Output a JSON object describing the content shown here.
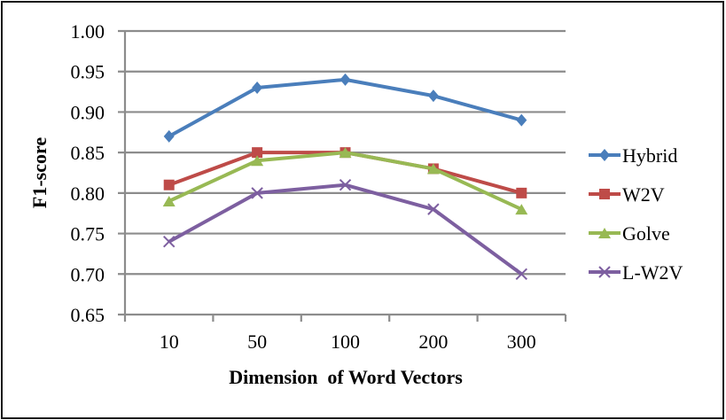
{
  "chart_data": {
    "type": "line",
    "title": "",
    "xlabel": "Dimension  of Word Vectors",
    "ylabel": "F1-score",
    "categories": [
      "10",
      "50",
      "100",
      "200",
      "300"
    ],
    "ylim": [
      0.65,
      1.0
    ],
    "yticks": [
      "1.00",
      "0.95",
      "0.90",
      "0.85",
      "0.80",
      "0.75",
      "0.70",
      "0.65"
    ],
    "grid": true,
    "legend_position": "right",
    "series": [
      {
        "name": "Hybrid",
        "color": "#4a7ebb",
        "marker": "diamond",
        "values": [
          0.87,
          0.93,
          0.94,
          0.92,
          0.89
        ]
      },
      {
        "name": "W2V",
        "color": "#be4b48",
        "marker": "square",
        "values": [
          0.81,
          0.85,
          0.85,
          0.83,
          0.8
        ]
      },
      {
        "name": "Golve",
        "color": "#98b954",
        "marker": "triangle",
        "values": [
          0.79,
          0.84,
          0.85,
          0.83,
          0.78
        ]
      },
      {
        "name": "L-W2V",
        "color": "#7d5fa0",
        "marker": "x",
        "values": [
          0.74,
          0.8,
          0.81,
          0.78,
          0.7
        ]
      }
    ]
  }
}
